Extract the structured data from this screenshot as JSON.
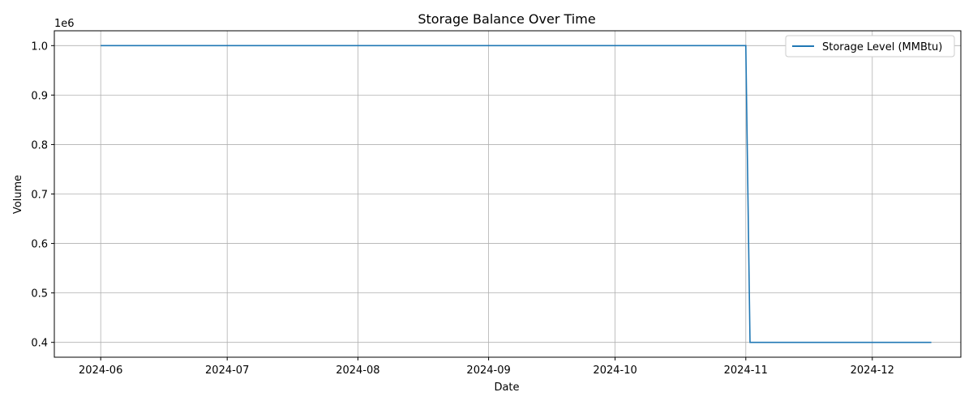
{
  "chart_data": {
    "type": "line",
    "title": "Storage Balance Over Time",
    "xlabel": "Date",
    "ylabel": "Volume",
    "y_offset_label": "1e6",
    "y_scale_factor": 1000000,
    "grid": true,
    "legend_position": "top-right",
    "xlim": [
      "2024-05-21",
      "2024-12-22"
    ],
    "ylim": [
      0.37,
      1.03
    ],
    "x_ticks": [
      "2024-06",
      "2024-07",
      "2024-08",
      "2024-09",
      "2024-10",
      "2024-11",
      "2024-12"
    ],
    "x_tick_dates": [
      "2024-06-01",
      "2024-07-01",
      "2024-08-01",
      "2024-09-01",
      "2024-10-01",
      "2024-11-01",
      "2024-12-01"
    ],
    "y_ticks": [
      "0.4",
      "0.5",
      "0.6",
      "0.7",
      "0.8",
      "0.9",
      "1.0"
    ],
    "series": [
      {
        "name": "Storage Level (MMBtu)",
        "color": "#1f77b4",
        "points": [
          {
            "x": "2024-06-01",
            "y": 1000000
          },
          {
            "x": "2024-11-01",
            "y": 1000000
          },
          {
            "x": "2024-11-02",
            "y": 400000
          },
          {
            "x": "2024-12-15",
            "y": 400000
          }
        ]
      }
    ]
  }
}
